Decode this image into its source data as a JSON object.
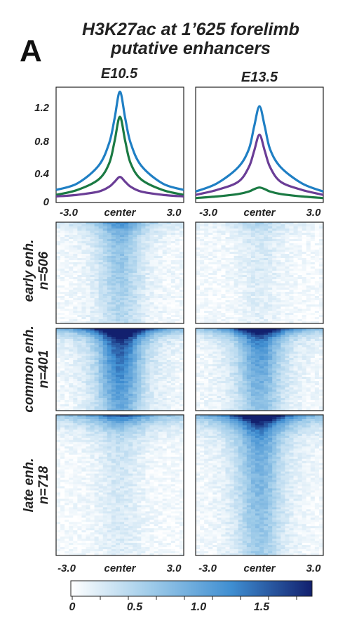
{
  "panel_letter": "A",
  "title_line1": "H3K27ac at 1’625  forelimb",
  "title_line2": "putative enhancers",
  "chart_data": {
    "type": "line",
    "columns": [
      "E10.5",
      "E13.5"
    ],
    "profile_y_ticks": [
      "1.2",
      "0.8",
      "0.4",
      "0"
    ],
    "ylim": [
      0,
      1.35
    ],
    "x_ticks": [
      "-3.0",
      "center",
      "3.0"
    ],
    "xlim": [
      -3.0,
      3.0
    ],
    "colors": {
      "early": "#1a7a43",
      "common": "#1f7fc4",
      "late": "#6a3d96"
    },
    "profiles": [
      {
        "column": "E10.5",
        "x": [
          -3.0,
          -2.0,
          -1.0,
          -0.5,
          -0.25,
          0,
          0.25,
          0.5,
          1.0,
          2.0,
          3.0
        ],
        "series": [
          {
            "group": "common",
            "values": [
              0.12,
              0.2,
              0.42,
              0.7,
              1.0,
              1.33,
              1.0,
              0.7,
              0.42,
              0.2,
              0.12
            ]
          },
          {
            "group": "early",
            "values": [
              0.06,
              0.12,
              0.25,
              0.45,
              0.72,
              1.02,
              0.72,
              0.45,
              0.25,
              0.12,
              0.06
            ]
          },
          {
            "group": "late",
            "values": [
              0.04,
              0.06,
              0.1,
              0.16,
              0.22,
              0.28,
              0.22,
              0.16,
              0.1,
              0.06,
              0.04
            ]
          }
        ]
      },
      {
        "column": "E13.5",
        "x": [
          -3.0,
          -2.0,
          -1.0,
          -0.5,
          -0.25,
          0,
          0.25,
          0.5,
          1.0,
          2.0,
          3.0
        ],
        "series": [
          {
            "group": "common",
            "values": [
              0.1,
              0.2,
              0.4,
              0.62,
              0.9,
              1.15,
              0.9,
              0.62,
              0.4,
              0.2,
              0.1
            ]
          },
          {
            "group": "late",
            "values": [
              0.06,
              0.12,
              0.22,
              0.4,
              0.6,
              0.8,
              0.6,
              0.4,
              0.22,
              0.12,
              0.06
            ]
          },
          {
            "group": "early",
            "values": [
              0.02,
              0.04,
              0.07,
              0.1,
              0.13,
              0.15,
              0.13,
              0.1,
              0.07,
              0.04,
              0.02
            ]
          }
        ]
      }
    ],
    "heatmap_rows": [
      {
        "group": "early",
        "label": "early enh.",
        "n": "n=506",
        "peak": [
          0.55,
          0.18
        ],
        "edge_top": [
          0.5,
          0.25
        ]
      },
      {
        "group": "common",
        "label": "common enh.",
        "n": "n=401",
        "peak": [
          1.2,
          0.9
        ],
        "edge_top": [
          1.6,
          1.4
        ]
      },
      {
        "group": "late",
        "label": "late enh.",
        "n": "n=718",
        "peak": [
          0.22,
          0.75
        ],
        "edge_top": [
          1.2,
          1.6
        ]
      }
    ],
    "colorbar": {
      "range": [
        0,
        1.9
      ],
      "ticks": [
        "0",
        "0.5",
        "1.0",
        "1.5"
      ],
      "stops": [
        "#ffffff",
        "#9ecbe9",
        "#3f8ed1",
        "#12206e"
      ]
    }
  }
}
